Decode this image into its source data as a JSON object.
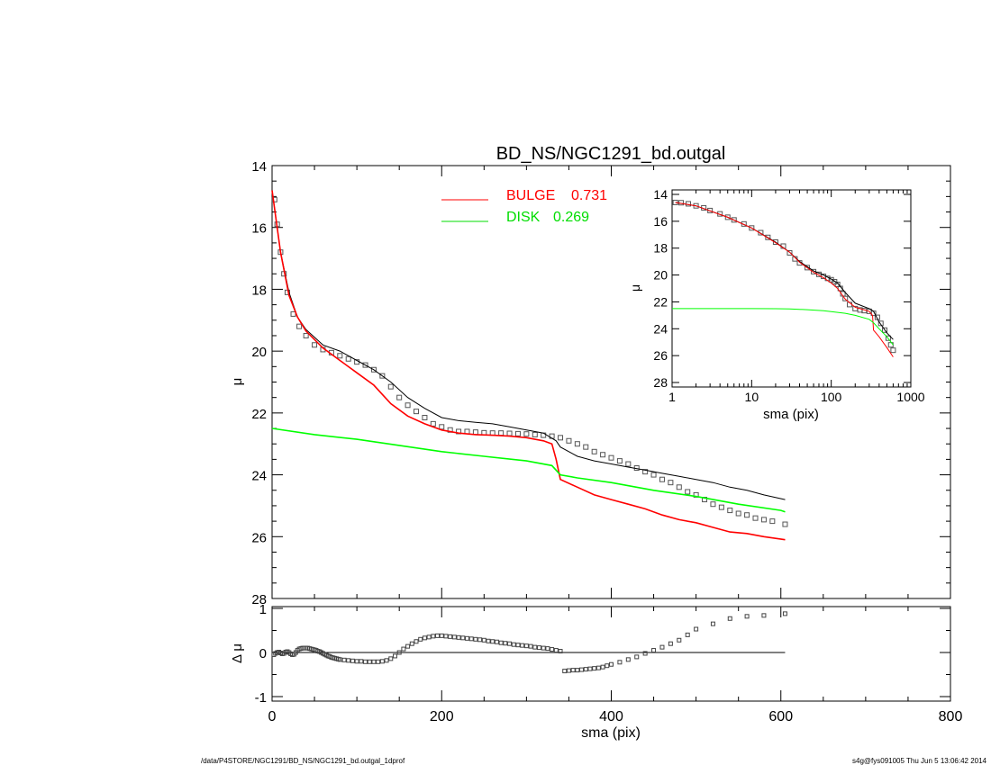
{
  "title": "BD_NS/NGC1291_bd.outgal",
  "footer": {
    "left": "/data/P4STORE/NGC1291/BD_NS/NGC1291_bd.outgal_1dprof",
    "right": "s4g@fys091005  Thu Jun  5 13:06:42 2014"
  },
  "colors": {
    "bulge": "#ff0000",
    "disk": "#00ff00",
    "model": "#000000",
    "data": "#555555"
  },
  "chart_data": [
    {
      "panel": "main",
      "type": "line",
      "xlabel": "",
      "ylabel": "μ",
      "xlim": [
        0,
        800
      ],
      "ylim": [
        28,
        14
      ],
      "y_ticks": [
        "14",
        "16",
        "18",
        "20",
        "22",
        "24",
        "26",
        "28"
      ],
      "legend": [
        {
          "label": "BULGE",
          "value": "0.731",
          "color": "#ff0000"
        },
        {
          "label": "DISK",
          "value": "0.269",
          "color": "#00ff00"
        }
      ],
      "series": [
        {
          "role": "data-points",
          "marker": "square",
          "x": [
            3,
            6,
            10,
            14,
            18,
            25,
            32,
            40,
            50,
            60,
            70,
            80,
            90,
            100,
            110,
            120,
            130,
            140,
            150,
            160,
            170,
            180,
            190,
            200,
            210,
            220,
            230,
            240,
            250,
            260,
            270,
            280,
            290,
            300,
            310,
            320,
            330,
            340,
            350,
            360,
            370,
            380,
            390,
            400,
            410,
            420,
            430,
            440,
            450,
            460,
            470,
            480,
            490,
            500,
            510,
            520,
            530,
            540,
            550,
            560,
            570,
            580,
            590,
            605
          ],
          "y": [
            15.1,
            15.9,
            16.8,
            17.5,
            18.1,
            18.8,
            19.2,
            19.5,
            19.8,
            19.95,
            20.05,
            20.15,
            20.25,
            20.35,
            20.45,
            20.6,
            20.8,
            21.15,
            21.5,
            21.75,
            21.95,
            22.15,
            22.35,
            22.45,
            22.55,
            22.6,
            22.6,
            22.62,
            22.64,
            22.65,
            22.65,
            22.66,
            22.67,
            22.68,
            22.7,
            22.72,
            22.75,
            22.8,
            22.9,
            23.0,
            23.1,
            23.25,
            23.35,
            23.45,
            23.55,
            23.65,
            23.78,
            23.9,
            24.0,
            24.15,
            24.25,
            24.4,
            24.55,
            24.65,
            24.8,
            24.95,
            25.05,
            25.15,
            25.25,
            25.3,
            25.4,
            25.45,
            25.5,
            25.6
          ]
        },
        {
          "role": "model-total",
          "color": "#000000",
          "x": [
            0,
            5,
            10,
            20,
            30,
            40,
            60,
            80,
            100,
            120,
            140,
            160,
            180,
            200,
            220,
            240,
            260,
            280,
            300,
            320,
            335,
            340,
            360,
            380,
            400,
            420,
            440,
            460,
            480,
            500,
            520,
            540,
            560,
            580,
            605
          ],
          "y": [
            14.8,
            15.8,
            16.8,
            18.1,
            18.9,
            19.3,
            19.8,
            20.0,
            20.3,
            20.6,
            21.0,
            21.5,
            21.85,
            22.15,
            22.25,
            22.3,
            22.35,
            22.45,
            22.55,
            22.65,
            22.9,
            23.1,
            23.4,
            23.55,
            23.65,
            23.75,
            23.85,
            23.95,
            24.05,
            24.15,
            24.25,
            24.4,
            24.5,
            24.65,
            24.8
          ]
        },
        {
          "role": "bulge",
          "color": "#ff0000",
          "x": [
            0,
            5,
            10,
            20,
            30,
            40,
            60,
            80,
            100,
            120,
            140,
            160,
            180,
            200,
            220,
            240,
            260,
            280,
            300,
            320,
            330,
            335,
            340,
            360,
            380,
            400,
            420,
            440,
            460,
            480,
            500,
            520,
            540,
            560,
            580,
            605
          ],
          "y": [
            14.8,
            15.8,
            16.8,
            18.2,
            18.9,
            19.35,
            19.9,
            20.3,
            20.7,
            21.1,
            21.7,
            22.1,
            22.35,
            22.55,
            22.65,
            22.7,
            22.72,
            22.75,
            22.8,
            22.9,
            23.0,
            23.5,
            24.15,
            24.4,
            24.65,
            24.8,
            24.95,
            25.1,
            25.3,
            25.45,
            25.55,
            25.7,
            25.85,
            25.9,
            26.0,
            26.1
          ]
        },
        {
          "role": "disk",
          "color": "#00ff00",
          "x": [
            0,
            50,
            100,
            150,
            200,
            250,
            300,
            330,
            340,
            360,
            400,
            450,
            500,
            550,
            600,
            605
          ],
          "y": [
            22.5,
            22.7,
            22.85,
            23.05,
            23.25,
            23.4,
            23.55,
            23.7,
            24.0,
            24.1,
            24.25,
            24.5,
            24.7,
            24.95,
            25.15,
            25.2
          ]
        }
      ]
    },
    {
      "panel": "residual",
      "type": "scatter",
      "xlabel": "sma (pix)",
      "ylabel": "Δ μ",
      "xlim": [
        0,
        800
      ],
      "ylim": [
        -1,
        1
      ],
      "x_ticks": [
        "0",
        "200",
        "400",
        "600",
        "800"
      ],
      "y_ticks": [
        "1",
        "0",
        "-1"
      ],
      "series": [
        {
          "role": "residual-points",
          "marker": "square",
          "x": [
            2,
            4,
            6,
            8,
            10,
            12,
            14,
            16,
            18,
            20,
            22,
            24,
            26,
            28,
            30,
            32,
            34,
            36,
            38,
            40,
            42,
            44,
            46,
            48,
            50,
            52,
            54,
            56,
            58,
            60,
            62,
            64,
            66,
            68,
            70,
            72,
            74,
            76,
            78,
            80,
            85,
            90,
            95,
            100,
            105,
            110,
            115,
            120,
            125,
            130,
            135,
            140,
            145,
            150,
            155,
            160,
            165,
            170,
            175,
            180,
            185,
            190,
            195,
            200,
            205,
            210,
            215,
            220,
            225,
            230,
            235,
            240,
            245,
            250,
            255,
            260,
            265,
            270,
            275,
            280,
            285,
            290,
            295,
            300,
            305,
            310,
            315,
            320,
            325,
            330,
            335,
            340,
            345,
            350,
            355,
            360,
            365,
            370,
            375,
            380,
            385,
            390,
            395,
            400,
            410,
            420,
            430,
            440,
            450,
            460,
            470,
            480,
            490,
            500,
            520,
            540,
            560,
            580,
            605
          ],
          "y": [
            -0.05,
            -0.02,
            0.0,
            0.01,
            -0.01,
            -0.03,
            -0.02,
            0.01,
            0.02,
            0.0,
            -0.03,
            -0.05,
            -0.04,
            0.0,
            0.05,
            0.08,
            0.09,
            0.1,
            0.1,
            0.1,
            0.1,
            0.09,
            0.08,
            0.07,
            0.06,
            0.05,
            0.03,
            0.02,
            0.0,
            -0.02,
            -0.04,
            -0.06,
            -0.08,
            -0.09,
            -0.11,
            -0.12,
            -0.13,
            -0.14,
            -0.15,
            -0.16,
            -0.17,
            -0.18,
            -0.19,
            -0.2,
            -0.2,
            -0.21,
            -0.21,
            -0.21,
            -0.21,
            -0.2,
            -0.18,
            -0.14,
            -0.08,
            0.0,
            0.08,
            0.14,
            0.2,
            0.25,
            0.3,
            0.33,
            0.35,
            0.37,
            0.38,
            0.38,
            0.37,
            0.36,
            0.35,
            0.34,
            0.33,
            0.32,
            0.31,
            0.3,
            0.29,
            0.28,
            0.26,
            0.25,
            0.24,
            0.22,
            0.21,
            0.2,
            0.18,
            0.17,
            0.16,
            0.15,
            0.14,
            0.12,
            0.11,
            0.1,
            0.09,
            0.07,
            0.05,
            0.03,
            -0.42,
            -0.41,
            -0.4,
            -0.4,
            -0.39,
            -0.38,
            -0.37,
            -0.36,
            -0.35,
            -0.33,
            -0.3,
            -0.27,
            -0.22,
            -0.16,
            -0.1,
            -0.02,
            0.05,
            0.12,
            0.2,
            0.28,
            0.4,
            0.53,
            0.65,
            0.77,
            0.82,
            0.84,
            0.88
          ]
        }
      ]
    },
    {
      "panel": "inset",
      "type": "line",
      "xlabel": "sma (pix)",
      "ylabel": "μ",
      "xscale": "log",
      "xlim": [
        1,
        1000
      ],
      "ylim": [
        28,
        14
      ],
      "x_ticks": [
        "1",
        "10",
        "100",
        "1000"
      ],
      "y_ticks": [
        "14",
        "16",
        "18",
        "20",
        "22",
        "24",
        "26",
        "28"
      ],
      "series": [
        {
          "role": "data-points",
          "marker": "square",
          "x": [
            1.1,
            1.3,
            1.6,
            2,
            2.5,
            3,
            4,
            5,
            6,
            8,
            10,
            13,
            16,
            20,
            25,
            30,
            35,
            40,
            50,
            60,
            70,
            80,
            90,
            100,
            110,
            120,
            130,
            140,
            150,
            170,
            200,
            230,
            260,
            300,
            340,
            380,
            420,
            470,
            520,
            560,
            600
          ],
          "y": [
            14.6,
            14.62,
            14.7,
            14.85,
            15.0,
            15.2,
            15.45,
            15.7,
            15.9,
            16.2,
            16.5,
            16.85,
            17.2,
            17.55,
            17.85,
            18.35,
            18.8,
            19.1,
            19.45,
            19.75,
            19.95,
            20.1,
            20.25,
            20.35,
            20.5,
            20.7,
            21.0,
            21.4,
            21.75,
            22.2,
            22.5,
            22.6,
            22.65,
            22.7,
            22.85,
            23.15,
            23.6,
            24.1,
            24.7,
            25.2,
            25.6
          ]
        },
        {
          "role": "model-total",
          "color": "#000000",
          "x": [
            1.1,
            2,
            5,
            10,
            20,
            30,
            40,
            60,
            80,
            100,
            120,
            150,
            200,
            300,
            340,
            400,
            500,
            600
          ],
          "y": [
            14.6,
            14.85,
            15.7,
            16.5,
            17.55,
            18.3,
            19.0,
            19.7,
            20.0,
            20.3,
            20.6,
            21.3,
            22.1,
            22.5,
            22.7,
            23.5,
            24.3,
            24.8
          ]
        },
        {
          "role": "bulge",
          "color": "#ff0000",
          "x": [
            1.1,
            2,
            5,
            10,
            20,
            30,
            40,
            60,
            80,
            100,
            120,
            150,
            200,
            300,
            330,
            340,
            400,
            500,
            600
          ],
          "y": [
            14.6,
            14.85,
            15.7,
            16.5,
            17.6,
            18.3,
            19.05,
            19.8,
            20.2,
            20.6,
            21.0,
            21.8,
            22.4,
            22.7,
            23.0,
            24.1,
            24.6,
            25.4,
            26.1
          ]
        },
        {
          "role": "disk",
          "color": "#00ff00",
          "x": [
            1,
            2,
            5,
            10,
            20,
            30,
            50,
            80,
            100,
            150,
            200,
            300,
            340,
            400,
            500,
            600
          ],
          "y": [
            22.5,
            22.5,
            22.5,
            22.5,
            22.51,
            22.53,
            22.58,
            22.66,
            22.72,
            22.85,
            23.0,
            23.3,
            23.55,
            24.0,
            24.6,
            25.2
          ]
        }
      ]
    }
  ]
}
